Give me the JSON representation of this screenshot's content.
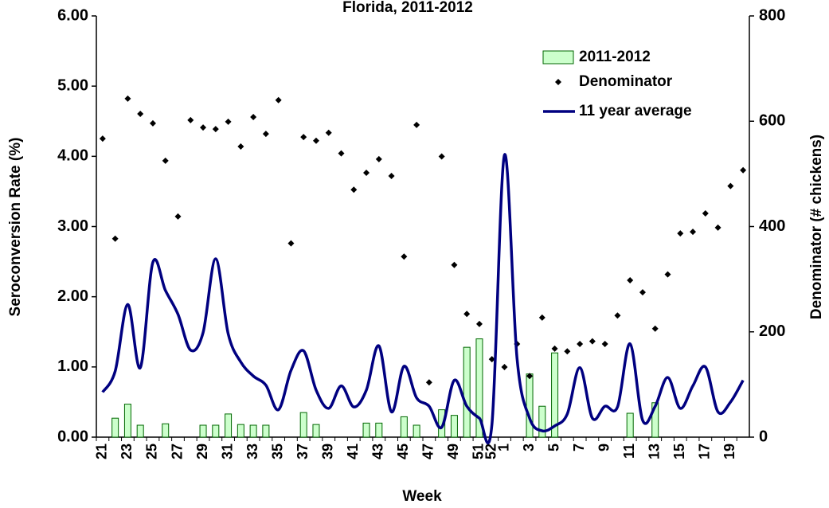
{
  "chart_data": {
    "type": "bar_line",
    "title": "Florida, 2011-2012",
    "x_label": "Week",
    "y_label": "Seroconversion Rate (%)",
    "y2_label": "Denominator (# chickens)",
    "categories": [
      "21",
      null,
      "23",
      null,
      "25",
      null,
      "27",
      null,
      "29",
      null,
      "31",
      null,
      "33",
      null,
      "35",
      null,
      "37",
      null,
      "39",
      null,
      "41",
      null,
      "43",
      null,
      "45",
      null,
      "47",
      null,
      "49",
      null,
      "51",
      "52",
      "1",
      null,
      "3",
      null,
      "5",
      null,
      "7",
      null,
      "9",
      null,
      "11",
      null,
      "13",
      null,
      "15",
      null,
      "17",
      null,
      "19",
      null
    ],
    "ylim": [
      0,
      6
    ],
    "yticks": [
      {
        "value": 0,
        "label": "0.00"
      },
      {
        "value": 1,
        "label": "1.00"
      },
      {
        "value": 2,
        "label": "2.00"
      },
      {
        "value": 3,
        "label": "3.00"
      },
      {
        "value": 4,
        "label": "4.00"
      },
      {
        "value": 5,
        "label": "5.00"
      },
      {
        "value": 6,
        "label": "6.00"
      }
    ],
    "y2lim": [
      0,
      800
    ],
    "y2ticks": [
      0,
      200,
      400,
      600,
      800
    ],
    "series": [
      {
        "name": "2011-2012",
        "type": "bar",
        "color": "#ccffcc",
        "edge_color": "#006600",
        "values": [
          0,
          0.27,
          0.47,
          0.17,
          0,
          0.19,
          0,
          0,
          0.17,
          0.17,
          0.33,
          0.18,
          0.17,
          0.17,
          0,
          0,
          0.35,
          0.18,
          0,
          0,
          0,
          0.2,
          0.2,
          0,
          0.29,
          0.17,
          0,
          0.39,
          0.31,
          1.28,
          1.4,
          0,
          0,
          0,
          0.9,
          0.44,
          1.2,
          0,
          0,
          0,
          0,
          0,
          0.34,
          0,
          0.49,
          0,
          0,
          0,
          0,
          0,
          0,
          0
        ]
      },
      {
        "name": "Denominator",
        "type": "scatter",
        "axis": "y2",
        "color": "#000000",
        "values": [
          567,
          377,
          643,
          614,
          596,
          525,
          419,
          602,
          588,
          585,
          599,
          552,
          608,
          576,
          640,
          368,
          570,
          563,
          578,
          539,
          470,
          502,
          528,
          496,
          343,
          593,
          104,
          533,
          327,
          234,
          215,
          148,
          133,
          177,
          116,
          227,
          168,
          163,
          177,
          182,
          177,
          231,
          298,
          275,
          206,
          309,
          387,
          390,
          425,
          398,
          477,
          507
        ]
      },
      {
        "name": "11 year average",
        "type": "line",
        "color": "#000080",
        "values": [
          0.64,
          0.94,
          1.89,
          0.99,
          2.49,
          2.09,
          1.75,
          1.24,
          1.49,
          2.54,
          1.47,
          1.07,
          0.87,
          0.74,
          0.39,
          0.95,
          1.23,
          0.67,
          0.41,
          0.73,
          0.43,
          0.67,
          1.3,
          0.36,
          1.01,
          0.56,
          0.44,
          0.14,
          0.81,
          0.44,
          0.27,
          0.18,
          4.02,
          1.12,
          0.27,
          0.09,
          0.16,
          0.33,
          0.99,
          0.27,
          0.44,
          0.43,
          1.33,
          0.24,
          0.44,
          0.85,
          0.41,
          0.73,
          1.0,
          0.36,
          0.5,
          0.81
        ]
      }
    ]
  }
}
